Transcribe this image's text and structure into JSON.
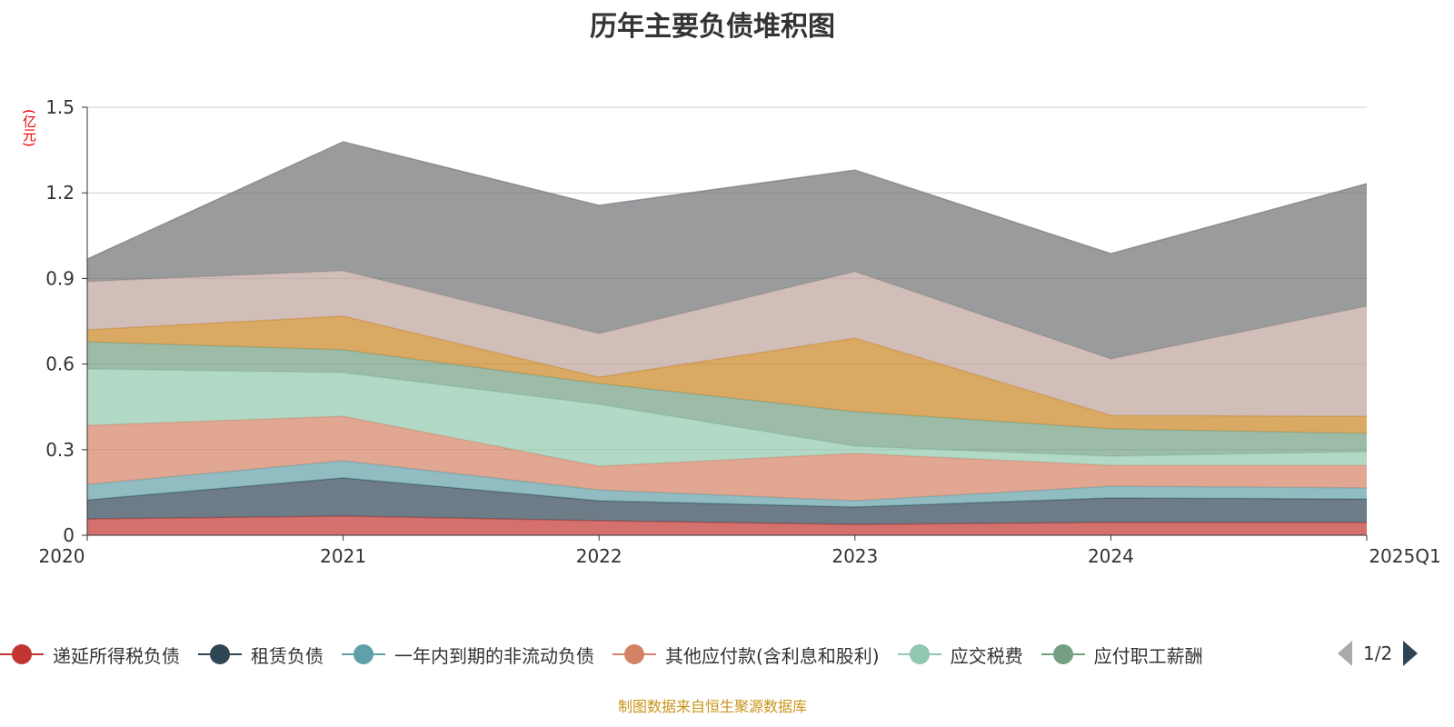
{
  "chart_data": {
    "type": "area",
    "title": "历年主要负债堆积图",
    "ylabel": "(亿元)",
    "ylim": [
      0,
      1.5
    ],
    "yticks": [
      "0",
      "0.3",
      "0.6",
      "0.9",
      "1.2",
      "1.5"
    ],
    "categories": [
      "2020",
      "2021",
      "2022",
      "2023",
      "2024",
      "2025Q1"
    ],
    "stacked": true,
    "grid": true,
    "legend_position": "bottom",
    "series": [
      {
        "name": "递延所得税负债",
        "color": "#c23531",
        "values": [
          0.057,
          0.067,
          0.051,
          0.038,
          0.045,
          0.045
        ]
      },
      {
        "name": "租赁负债",
        "color": "#2f4554",
        "values": [
          0.067,
          0.134,
          0.07,
          0.061,
          0.086,
          0.082
        ]
      },
      {
        "name": "一年内到期的非流动负债",
        "color": "#61a0a8",
        "values": [
          0.054,
          0.06,
          0.038,
          0.022,
          0.041,
          0.039
        ]
      },
      {
        "name": "其他应付款(含利息和股利)",
        "color": "#d48265",
        "values": [
          0.207,
          0.156,
          0.083,
          0.166,
          0.073,
          0.079
        ]
      },
      {
        "name": "应交税费",
        "color": "#91c7ae",
        "values": [
          0.198,
          0.153,
          0.217,
          0.025,
          0.032,
          0.048
        ]
      },
      {
        "name": "应付职工薪酬",
        "color": "#749f83",
        "values": [
          0.095,
          0.08,
          0.073,
          0.121,
          0.096,
          0.064
        ]
      },
      {
        "color": "#ca8622",
        "values": [
          0.042,
          0.118,
          0.022,
          0.258,
          0.047,
          0.06
        ]
      },
      {
        "color": "#bda29a",
        "values": [
          0.169,
          0.159,
          0.153,
          0.233,
          0.198,
          0.386
        ]
      },
      {
        "color": "#6e7074",
        "values": [
          0.079,
          0.452,
          0.449,
          0.356,
          0.369,
          0.429
        ]
      }
    ]
  },
  "legend": {
    "page": "1/2"
  },
  "source": "制图数据来自恒生聚源数据库"
}
